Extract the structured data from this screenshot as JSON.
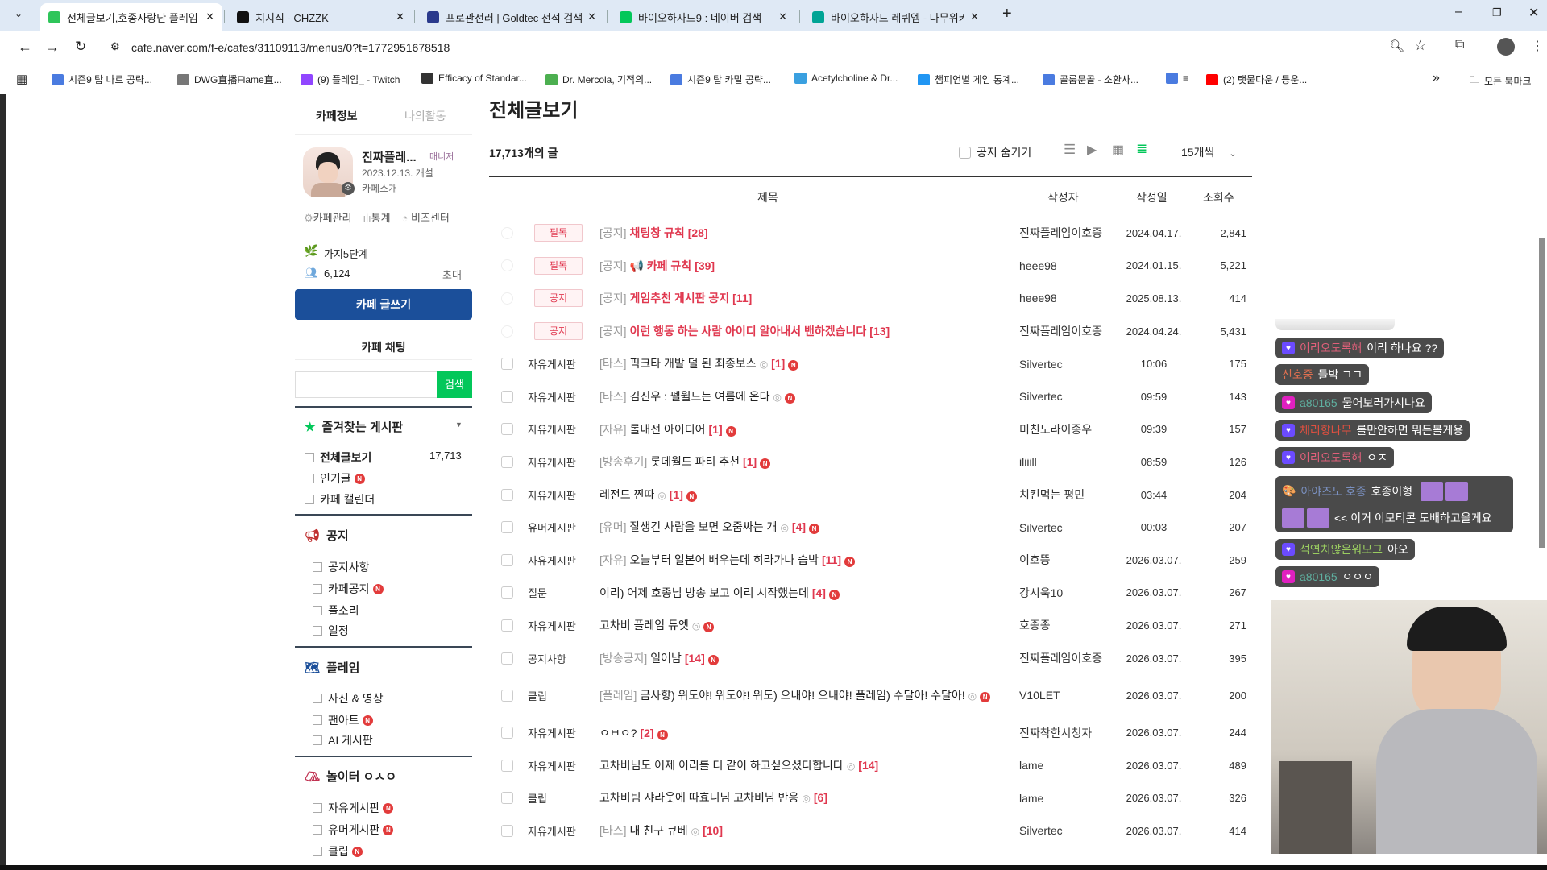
{
  "browser": {
    "tabs": [
      {
        "title": "전체글보기,호종사랑단 플레임",
        "color": "#2fc55a"
      },
      {
        "title": "치지직 - CHZZK",
        "color": "#111111"
      },
      {
        "title": "프로관전러 | Goldtec 전적 검색",
        "color": "#2b3a8c"
      },
      {
        "title": "바이오하자드9 : 네이버 검색",
        "color": "#03c75a"
      },
      {
        "title": "바이오하자드 레퀴엠 - 나무위키",
        "color": "#00a495"
      }
    ],
    "new_tab": "+",
    "url": "cafe.naver.com/f-e/cafes/31109113/menus/0?t=1772951678518",
    "bookmarks": [
      {
        "label": "시즌9 탑 나르 공략...",
        "color": "#4a7be0"
      },
      {
        "label": "DWG直播Flame直...",
        "color": "#777777"
      },
      {
        "label": "(9) 플레임_ - Twitch",
        "color": "#9146ff"
      },
      {
        "label": "Efficacy of Standar...",
        "color": "#333333"
      },
      {
        "label": "Dr. Mercola, 기적의...",
        "color": "#4caf50"
      },
      {
        "label": "시즌9 탑 카밀 공략...",
        "color": "#4a7be0"
      },
      {
        "label": "Acetylcholine & Dr...",
        "color": "#3aa0e0"
      },
      {
        "label": "챔피언별 게임 통계...",
        "color": "#2196f3"
      },
      {
        "label": "골룸문골 - 소환사...",
        "color": "#4a7be0"
      },
      {
        "label": "≡",
        "color": "#4a7be0"
      },
      {
        "label": "(2) 탯뭍다운 / 등운...",
        "color": "#ff0000"
      }
    ],
    "bookmarks_more": "»",
    "all_bookmarks": "모든 북마크"
  },
  "sidebar": {
    "tabs": [
      "카페정보",
      "나의활동"
    ],
    "cafe_name": "진짜플레...",
    "role": "매니저",
    "opened": "2023.12.13. 개설",
    "intro": "카페소개",
    "links": [
      "카페관리",
      "통계",
      "비즈센터"
    ],
    "level": "가지5단계",
    "members": "6,124",
    "invite": "초대",
    "write_button": "카페 글쓰기",
    "chat_button": "카페 채팅",
    "search_placeholder": "",
    "search_button": "검색",
    "favorites": {
      "title": "즐겨찾는 게시판",
      "items": [
        {
          "label": "전체글보기",
          "count": "17,713"
        },
        {
          "label": "인기글",
          "new": "N"
        },
        {
          "label": "카페 캘린더"
        }
      ]
    },
    "sections": [
      {
        "title": "공지",
        "items": [
          {
            "label": "공지사항"
          },
          {
            "label": "카페공지",
            "new": "N"
          },
          {
            "label": "플소리"
          },
          {
            "label": "일정"
          }
        ]
      },
      {
        "title": "플레임",
        "items": [
          {
            "label": "사진 & 영상"
          },
          {
            "label": "팬아트",
            "new": "N"
          },
          {
            "label": "AI 게시판"
          }
        ]
      },
      {
        "title": "놀이터 ㅇㅅㅇ",
        "items": [
          {
            "label": "자유게시판",
            "new": "N"
          },
          {
            "label": "유머게시판",
            "new": "N"
          },
          {
            "label": "클립",
            "new": "N"
          }
        ]
      }
    ]
  },
  "main": {
    "title": "전체글보기",
    "count": "17,713개의 글",
    "hide_notice": "공지 숨기기",
    "per_page": "15개씩",
    "columns": [
      "제목",
      "작성자",
      "작성일",
      "조회수"
    ],
    "rows": [
      {
        "notice": true,
        "badge": "필독",
        "pre": "[공지]",
        "title": "채팅창 규칙",
        "comments": "[28]",
        "author": "진짜플레임이호종",
        "date": "2024.04.17.",
        "views": "2,841"
      },
      {
        "notice": true,
        "badge": "필독",
        "pre": "[공지]",
        "icon": "📢",
        "title": "카페 규칙",
        "comments": "[39]",
        "author": "heee98",
        "date": "2024.01.15.",
        "views": "5,221"
      },
      {
        "notice": true,
        "badge": "공지",
        "pre": "[공지]",
        "title": "게임추천 게시판 공지",
        "comments": "[11]",
        "author": "heee98",
        "date": "2025.08.13.",
        "views": "414"
      },
      {
        "notice": true,
        "badge": "공지",
        "pre": "[공지]",
        "title": "이런 행동 하는 사람 아이디 알아내서 밴하겠습니다",
        "comments": "[13]",
        "author": "진짜플레임이호종",
        "date": "2024.04.24.",
        "views": "5,431"
      },
      {
        "board": "자유게시판",
        "pre": "[타스]",
        "title": "픽크타 개발 덜 된 최종보스",
        "attach": "◎",
        "comments": "[1]",
        "new": "N",
        "author": "Silvertec",
        "date": "10:06",
        "views": "175"
      },
      {
        "board": "자유게시판",
        "pre": "[타스]",
        "title": "김진우 : 펠월드는 여름에 온다",
        "attach": "◎",
        "comments": "",
        "new": "N",
        "author": "Silvertec",
        "date": "09:59",
        "views": "143"
      },
      {
        "board": "자유게시판",
        "pre": "[자유]",
        "title": "롤내전 아이디어",
        "comments": "[1]",
        "new": "N",
        "author": "미친도라이종우",
        "date": "09:39",
        "views": "157"
      },
      {
        "board": "자유게시판",
        "pre": "[방송후기]",
        "title": "롯데월드 파티 추천",
        "comments": "[1]",
        "new": "N",
        "author": "iliiill",
        "date": "08:59",
        "views": "126"
      },
      {
        "board": "자유게시판",
        "pre": "",
        "title": "레전드 찐따",
        "attach": "◎",
        "comments": "[1]",
        "new": "N",
        "author": "치킨먹는 평민",
        "date": "03:44",
        "views": "204"
      },
      {
        "board": "유머게시판",
        "pre": "[유머]",
        "title": "잘생긴 사람을 보면 오줌싸는 개",
        "attach": "◎",
        "comments": "[4]",
        "new": "N",
        "author": "Silvertec",
        "date": "00:03",
        "views": "207"
      },
      {
        "board": "자유게시판",
        "pre": "[자유]",
        "title": "오늘부터 일본어 배우는데 히라가나 습박",
        "comments": "[11]",
        "new": "N",
        "author": "이호뜽",
        "date": "2026.03.07.",
        "views": "259"
      },
      {
        "board": "질문",
        "pre": "",
        "title": "이리) 어제 호종님 방송 보고 이리 시작했는데",
        "comments": "[4]",
        "new": "N",
        "author": "강시욱10",
        "date": "2026.03.07.",
        "views": "267"
      },
      {
        "board": "자유게시판",
        "pre": "",
        "title": "고차비 플레임 듀엣",
        "attach": "◎",
        "comments": "",
        "new": "N",
        "author": "호종종",
        "date": "2026.03.07.",
        "views": "271"
      },
      {
        "board": "공지사항",
        "pre": "[방송공지]",
        "title": "일어남",
        "comments": "[14]",
        "new": "N",
        "author": "진짜플레임이호종",
        "date": "2026.03.07.",
        "views": "395"
      },
      {
        "board": "클립",
        "pre": "[플레임]",
        "title": "금사향) 위도야! 위도야! 위도) 으내야! 으내야! 플레임) 수달아! 수달아!",
        "attach": "◎",
        "comments": "",
        "new": "N",
        "author": "V10LET",
        "date": "2026.03.07.",
        "views": "200"
      },
      {
        "board": "자유게시판",
        "pre": "",
        "title": "ㅇㅂㅇ?",
        "comments": "[2]",
        "new": "N",
        "author": "진짜착한시청자",
        "date": "2026.03.07.",
        "views": "244"
      },
      {
        "board": "자유게시판",
        "pre": "",
        "title": "고차비님도 어제 이리를 더 같이 하고싶으셨다합니다",
        "attach": "◎",
        "comments": "[14]",
        "author": "lame",
        "date": "2026.03.07.",
        "views": "489"
      },
      {
        "board": "클립",
        "pre": "",
        "title": "고차비팀 샤라웃에 따효니님 고차비님 반응",
        "attach": "◎",
        "comments": "[6]",
        "author": "lame",
        "date": "2026.03.07.",
        "views": "326"
      },
      {
        "board": "자유게시판",
        "pre": "[타스]",
        "title": "내 친구 큐베",
        "attach": "◎",
        "comments": "[10]",
        "author": "Silvertec",
        "date": "2026.03.07.",
        "views": "414"
      }
    ]
  },
  "chat": [
    {
      "badge": "#6b4bff",
      "name": "이리오도록해",
      "name_color": "#e0607a",
      "text": "이리 하나요 ??"
    },
    {
      "name": "신호중",
      "name_color": "#e07050",
      "text": "들박 ㄱㄱ"
    },
    {
      "badge": "#e020c0",
      "name": "a80165",
      "name_color": "#5fb0a0",
      "text": "물어보러가시나요"
    },
    {
      "badge": "#6b4bff",
      "name": "체리향나무",
      "name_color": "#e05040",
      "text": "롤만안하면 뭐든볼게용"
    },
    {
      "badge": "#6b4bff",
      "name": "이리오도록해",
      "name_color": "#e0607a",
      "text": "ㅇㅈ"
    },
    {
      "name": "아야즈노 호종",
      "name_color": "#7a90c0",
      "text": "호종이형",
      "text2": "<< 이거 이모티콘 도배하고올게요"
    },
    {
      "badge": "#6b4bff",
      "name": "석연치않은워모그",
      "name_color": "#9acd60",
      "text": "아오"
    },
    {
      "badge": "#e020c0",
      "name": "a80165",
      "name_color": "#5fb0a0",
      "text": "ㅇㅇㅇ"
    }
  ],
  "colors": {
    "accent": "#1b4f9a",
    "notice_red": "#e0384f",
    "search_green": "#03c75a"
  }
}
